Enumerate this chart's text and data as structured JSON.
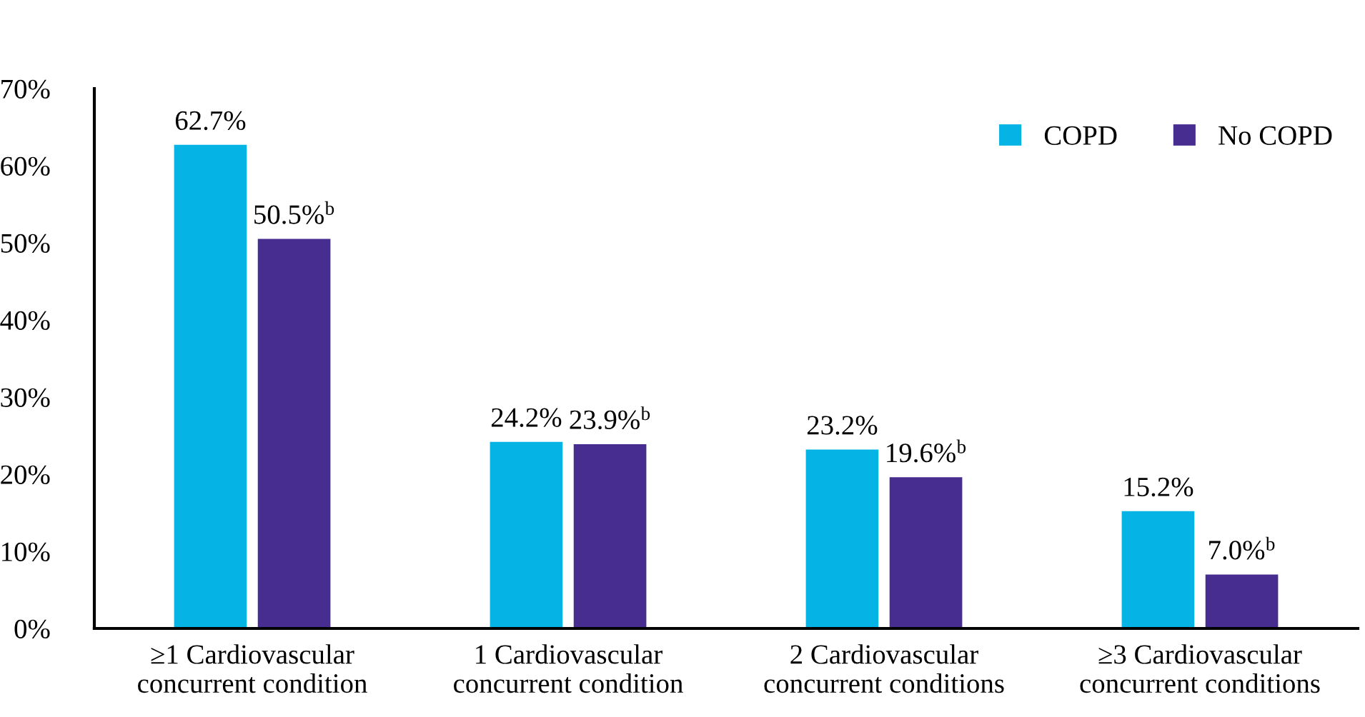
{
  "chart_data": {
    "type": "bar",
    "categories": [
      "≥1 Cardiovascular\nconcurrent condition",
      "1 Cardiovascular\nconcurrent condition",
      "2 Cardiovascular\nconcurrent conditions",
      "≥3 Cardiovascular\nconcurrent conditions"
    ],
    "series": [
      {
        "name": "COPD",
        "color": "#05b4e4",
        "values": [
          62.7,
          24.2,
          23.2,
          15.2
        ],
        "value_labels": [
          "62.7%",
          "24.2%",
          "23.2%",
          "15.2%"
        ]
      },
      {
        "name": "No COPD",
        "color": "#482d91",
        "values": [
          50.5,
          23.9,
          19.6,
          7.0
        ],
        "value_labels": [
          "50.5%$^{b}$",
          "23.9%$^{b}$",
          "19.6%$^{b}$",
          "7.0%$^{b}$"
        ]
      }
    ],
    "ylim": [
      0,
      70
    ],
    "yticks": [
      {
        "value": 0,
        "label": "0%"
      },
      {
        "value": 10,
        "label": "10%"
      },
      {
        "value": 20,
        "label": "20%"
      },
      {
        "value": 30,
        "label": "30%"
      },
      {
        "value": 40,
        "label": "40%"
      },
      {
        "value": 50,
        "label": "50%"
      },
      {
        "value": 60,
        "label": "60%"
      },
      {
        "value": 70,
        "label": "70%"
      }
    ],
    "grid": false,
    "legend": "top right"
  }
}
